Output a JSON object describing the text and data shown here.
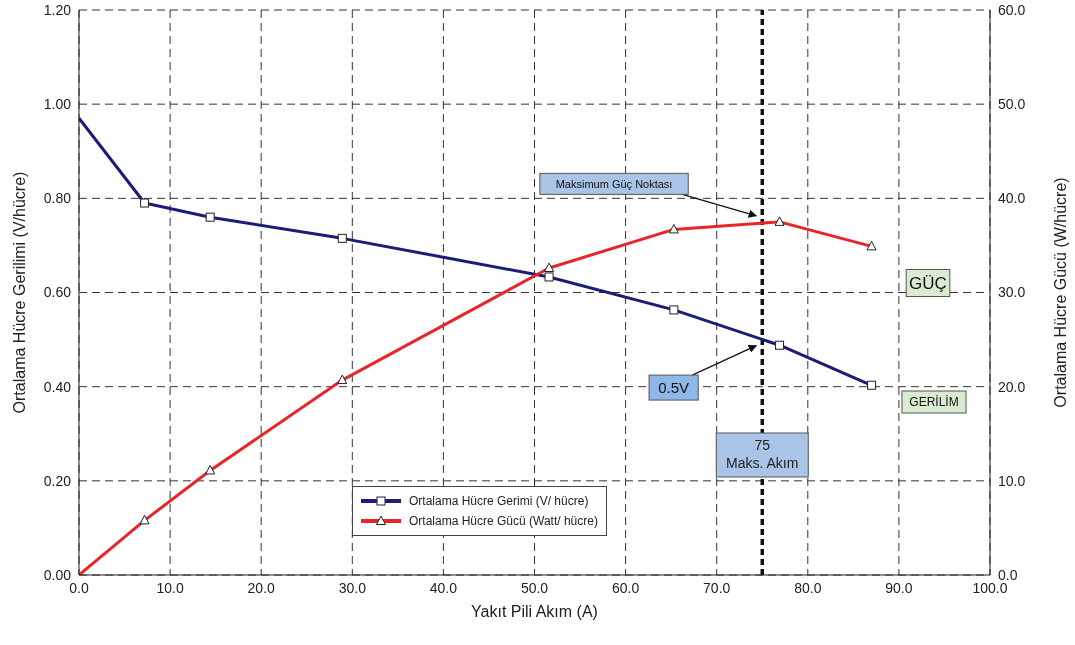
{
  "chart_data": {
    "type": "line",
    "xlabel": "Yakıt Pili Akım (A)",
    "ylabel": "Ortalama Hücre Gerilimi (V/hücre)",
    "y2label": "Ortalama Hücre Gücü (W/hücre)",
    "series": [
      {
        "name": "Ortalama Hücre Gerimi (V/ hücre)",
        "color": "#1c1c78",
        "marker": "square",
        "x": [
          0,
          7.2,
          14.4,
          28.9,
          51.6,
          65.3,
          76.9,
          87.0
        ],
        "values": [
          0.97,
          0.79,
          0.76,
          0.715,
          0.633,
          0.563,
          0.488,
          0.403
        ]
      },
      {
        "name": "Ortalama Hücre Gücü (Watt/ hücre)",
        "color": "#e8262a",
        "marker": "triangle",
        "axis": "y2",
        "x": [
          0,
          7.2,
          14.4,
          28.9,
          51.6,
          65.3,
          76.9,
          87.0
        ],
        "values": [
          0,
          5.8,
          11.1,
          20.7,
          32.6,
          36.7,
          37.5,
          34.9
        ]
      }
    ],
    "xlim": [
      0,
      100
    ],
    "xticks": [
      {
        "value": 0,
        "label": "0.0"
      },
      {
        "value": 10,
        "label": "10.0"
      },
      {
        "value": 20,
        "label": "20.0"
      },
      {
        "value": 30,
        "label": "30.0"
      },
      {
        "value": 40,
        "label": "40.0"
      },
      {
        "value": 50,
        "label": "50.0"
      },
      {
        "value": 60,
        "label": "60.0"
      },
      {
        "value": 70,
        "label": "70.0"
      },
      {
        "value": 80,
        "label": "80.0"
      },
      {
        "value": 90,
        "label": "90.0"
      },
      {
        "value": 100,
        "label": "100.0"
      }
    ],
    "ylim": [
      0,
      1.2
    ],
    "yticks": [
      {
        "value": 0,
        "label": "0.00"
      },
      {
        "value": 0.2,
        "label": "0.20"
      },
      {
        "value": 0.4,
        "label": "0.40"
      },
      {
        "value": 0.6,
        "label": "0.60"
      },
      {
        "value": 0.8,
        "label": "0.80"
      },
      {
        "value": 1,
        "label": "1.00"
      },
      {
        "value": 1.2,
        "label": "1.20"
      }
    ],
    "y2lim": [
      0,
      60
    ],
    "y2ticks": [
      {
        "value": 0,
        "label": "0.0"
      },
      {
        "value": 10,
        "label": "10.0"
      },
      {
        "value": 20,
        "label": "20.0"
      },
      {
        "value": 30,
        "label": "30.0"
      },
      {
        "value": 40,
        "label": "40.0"
      },
      {
        "value": 50,
        "label": "50.0"
      },
      {
        "value": 60,
        "label": "60.0"
      }
    ],
    "grid": true,
    "line_style": "solid",
    "legend": "bottom",
    "ref_lines": [
      {
        "axis": "x",
        "value": 75,
        "label": "75\nMaks. Akım",
        "color": "#111111",
        "line_style": "dashed"
      }
    ],
    "annotations": [
      {
        "text": "Maksimum Güç Noktası",
        "x": 75,
        "y": 0.75
      },
      {
        "text": "0.5V",
        "x": 75,
        "y": 0.5
      },
      "GÜÇ",
      "GERİLİM"
    ]
  }
}
